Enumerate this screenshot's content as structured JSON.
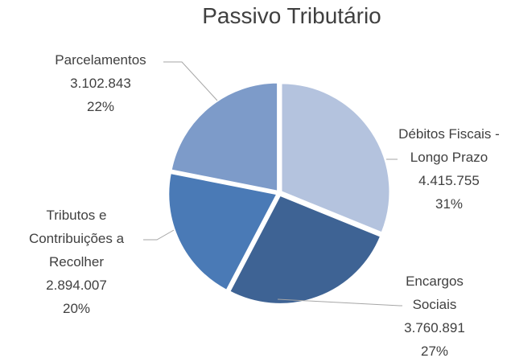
{
  "chart_data": {
    "type": "pie",
    "title": "Passivo Tributário",
    "categories": [
      "Débitos Fiscais - Longo Prazo",
      "Encargos Sociais",
      "Tributos e Contribuições a Recolher",
      "Parcelamentos"
    ],
    "values": [
      4415755,
      3760891,
      2894007,
      3102843
    ],
    "value_labels": [
      "4.415.755",
      "3.760.891",
      "2.894.007",
      "3.102.843"
    ],
    "percent_labels": [
      "31%",
      "27%",
      "20%",
      "22%"
    ],
    "colors": [
      "#b4c3de",
      "#3e6394",
      "#4a7ab6",
      "#7d9bc9"
    ]
  }
}
